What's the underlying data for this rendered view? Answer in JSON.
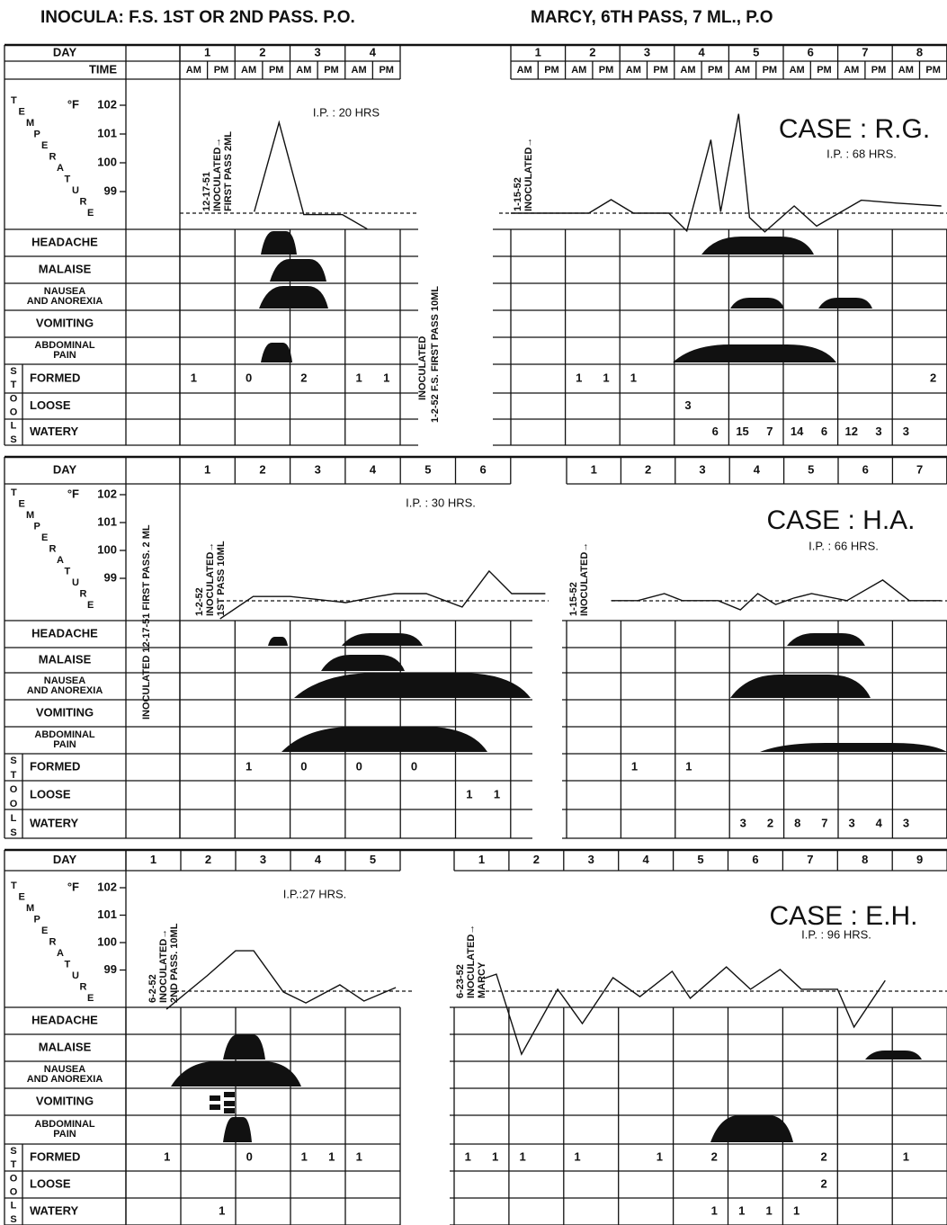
{
  "header": {
    "left": "INOCULA:  F.S. 1ST OR 2ND PASS. P.O.",
    "right": "MARCY, 6TH PASS, 7 ML., P.O"
  },
  "labels": {
    "day": "DAY",
    "time": "TIME",
    "am": "AM",
    "pm": "PM",
    "temperature": "TEMPERATURE",
    "unit": "°F",
    "stools": "STOOLS",
    "symptoms": [
      [
        "HEADACHE"
      ],
      [
        "MALAISE"
      ],
      [
        "NAUSEA",
        "AND ANOREXIA"
      ],
      [
        "VOMITING"
      ],
      [
        "ABDOMINAL",
        "PAIN"
      ]
    ],
    "stool_rows": [
      "FORMED",
      "LOOSE",
      "WATERY"
    ]
  },
  "temp_ticks": [
    102,
    101,
    100,
    99
  ],
  "panels": [
    {
      "case": "CASE : R.G.",
      "ip": "I.P. : 68 HRS.",
      "middle_notes": [
        "INOCULATED",
        "1-2-52 F.S. FIRST PASS 10ML"
      ],
      "left": {
        "ip": "I.P. : 20 HRS",
        "days": [
          1,
          2,
          3,
          4
        ],
        "notes": [
          "12-17-51",
          "INOCULATED→",
          "FIRST PASS 2ML"
        ],
        "temperature": {
          "x": [
            2.35,
            2.8,
            3.25,
            3.95,
            4.4
          ],
          "values": [
            98.3,
            101.4,
            98.2,
            98.2,
            97.7
          ]
        },
        "stools": {
          "formed": [
            1,
            null,
            0,
            null,
            2,
            null,
            1,
            1
          ],
          "loose": [
            null,
            null,
            null,
            null,
            null,
            null,
            null,
            null
          ],
          "watery": [
            null,
            null,
            null,
            null,
            null,
            null,
            null,
            null
          ]
        }
      },
      "right": {
        "days": [
          1,
          2,
          3,
          4,
          5,
          6,
          7,
          8
        ],
        "notes": [
          "1-15-52",
          "INOCULATED→"
        ],
        "temperature": {
          "x": [
            1.0,
            2.43,
            2.84,
            3.25,
            3.9,
            4.23,
            4.67,
            4.85,
            5.18,
            5.38,
            5.66,
            6.2,
            6.61,
            7.02,
            7.43,
            8.08,
            8.9
          ],
          "values": [
            98.25,
            98.25,
            98.72,
            98.25,
            98.25,
            97.63,
            100.8,
            98.3,
            101.7,
            98.1,
            97.6,
            98.5,
            97.8,
            98.25,
            98.7,
            98.6,
            98.5
          ]
        },
        "stools": {
          "formed": [
            null,
            null,
            1,
            1,
            1,
            null,
            null,
            null,
            null,
            null,
            null,
            null,
            null,
            null,
            null,
            2
          ],
          "loose": [
            null,
            null,
            null,
            null,
            null,
            null,
            3,
            null,
            null,
            null,
            null,
            null,
            null,
            null,
            null,
            null
          ],
          "watery": [
            null,
            null,
            null,
            null,
            null,
            null,
            null,
            6,
            15,
            7,
            14,
            6,
            12,
            3,
            3,
            null
          ]
        }
      }
    },
    {
      "case": "CASE : H.A.",
      "ip": "I.P. : 66 HRS.",
      "middle_notes": [
        "INOCULATED 12-17-51 FIRST PASS. 2 ML"
      ],
      "left": {
        "ip": "I.P. : 30 HRS.",
        "days": [
          1,
          2,
          3,
          4,
          5,
          6
        ],
        "notes": [
          "1-2-52",
          "INOCULATED→",
          "1ST PASS 10ML"
        ],
        "temperature": {
          "x": [
            1.73,
            2.33,
            3.0,
            4.01,
            4.58,
            4.9,
            5.47,
            6.12,
            6.61,
            7.02,
            7.63
          ],
          "values": [
            97.55,
            98.35,
            98.35,
            98.13,
            98.35,
            98.45,
            98.45,
            97.97,
            99.26,
            98.45,
            98.45
          ]
        },
        "stools": {
          "formed": [
            null,
            null,
            1,
            null,
            0,
            null,
            0,
            null,
            0,
            null,
            null,
            null
          ],
          "loose": [
            null,
            null,
            null,
            null,
            null,
            null,
            null,
            null,
            null,
            null,
            1,
            1
          ],
          "watery": [
            null,
            null,
            null,
            null,
            null,
            null,
            null,
            null,
            null,
            null,
            null,
            null
          ]
        }
      },
      "right": {
        "days": [
          1,
          2,
          3,
          4,
          5,
          6,
          7
        ],
        "notes": [
          "1-15-52",
          "INOCULATED→"
        ],
        "temperature": {
          "x": [
            1.82,
            2.31,
            2.8,
            3.13,
            3.79,
            4.2,
            4.52,
            4.85,
            5.18,
            5.51,
            6.16,
            6.82,
            7.31,
            7.89
          ],
          "values": [
            98.2,
            98.2,
            98.45,
            98.2,
            98.2,
            97.87,
            98.45,
            98.06,
            98.29,
            98.45,
            98.2,
            98.94,
            98.2,
            98.2
          ]
        },
        "stools": {
          "formed": [
            null,
            null,
            1,
            null,
            1,
            null,
            null,
            null,
            null,
            null,
            null,
            null,
            null,
            null
          ],
          "loose": [
            null,
            null,
            null,
            null,
            null,
            null,
            null,
            null,
            null,
            null,
            null,
            null,
            null,
            null
          ],
          "watery": [
            null,
            null,
            null,
            null,
            null,
            null,
            3,
            2,
            8,
            7,
            3,
            4,
            3,
            null
          ]
        }
      }
    },
    {
      "case": "CASE : E.H.",
      "ip": "I.P. : 96 HRS.",
      "middle_notes": [],
      "left": {
        "ip": "I.P.:27 HRS.",
        "days": [
          1,
          2,
          3,
          4,
          5
        ],
        "notes": [
          "6-2-52",
          "INOCULATED→",
          "2ND PASS. 10ML"
        ],
        "temperature": {
          "x": [
            1.74,
            2.48,
            3.0,
            3.33,
            3.87,
            4.28,
            4.9,
            5.34,
            5.92
          ],
          "values": [
            97.57,
            98.79,
            99.7,
            99.7,
            98.2,
            97.8,
            98.46,
            97.87,
            98.36
          ]
        },
        "stools": {
          "formed": [
            null,
            1,
            null,
            null,
            0,
            null,
            1,
            1,
            1,
            null
          ],
          "loose": [
            null,
            null,
            null,
            null,
            null,
            null,
            null,
            null,
            null,
            null
          ],
          "watery": [
            null,
            null,
            null,
            1,
            null,
            null,
            null,
            null,
            null,
            null
          ]
        }
      },
      "right": {
        "days": [
          1,
          2,
          3,
          4,
          5,
          6,
          7,
          8,
          9
        ],
        "notes": [
          "6-23-52",
          "INOCULATED→",
          "MARCY"
        ],
        "temperature": {
          "x": [
            1.54,
            1.77,
            2.23,
            2.89,
            3.34,
            3.9,
            4.39,
            4.98,
            5.31,
            5.97,
            6.41,
            6.95,
            7.34,
            8.0,
            8.3,
            8.87
          ],
          "values": [
            98.69,
            98.85,
            95.93,
            98.3,
            97.05,
            98.72,
            98.03,
            98.95,
            97.97,
            99.11,
            98.3,
            99.02,
            98.3,
            98.3,
            96.92,
            98.62
          ]
        },
        "stools": {
          "formed": [
            1,
            1,
            1,
            null,
            1,
            null,
            null,
            1,
            null,
            2,
            null,
            null,
            null,
            2,
            null,
            null,
            1,
            null
          ],
          "loose": [
            null,
            null,
            null,
            null,
            null,
            null,
            null,
            null,
            null,
            null,
            null,
            null,
            null,
            2,
            null,
            null,
            null,
            null
          ],
          "watery": [
            null,
            null,
            null,
            null,
            null,
            null,
            null,
            null,
            null,
            1,
            1,
            1,
            1,
            null,
            null,
            null,
            null,
            null
          ]
        }
      }
    }
  ]
}
